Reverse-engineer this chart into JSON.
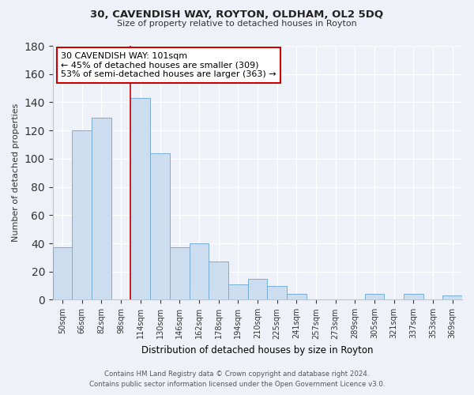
{
  "title": "30, CAVENDISH WAY, ROYTON, OLDHAM, OL2 5DQ",
  "subtitle": "Size of property relative to detached houses in Royton",
  "xlabel": "Distribution of detached houses by size in Royton",
  "ylabel": "Number of detached properties",
  "bar_color": "#ccddf0",
  "bar_edge_color": "#7aadd4",
  "categories": [
    "50sqm",
    "66sqm",
    "82sqm",
    "98sqm",
    "114sqm",
    "130sqm",
    "146sqm",
    "162sqm",
    "178sqm",
    "194sqm",
    "210sqm",
    "225sqm",
    "241sqm",
    "257sqm",
    "273sqm",
    "289sqm",
    "305sqm",
    "321sqm",
    "337sqm",
    "353sqm",
    "369sqm"
  ],
  "values": [
    37,
    120,
    129,
    0,
    143,
    104,
    37,
    40,
    27,
    11,
    15,
    10,
    4,
    0,
    0,
    0,
    4,
    0,
    4,
    0,
    3
  ],
  "property_line_color": "#cc0000",
  "annotation_line1": "30 CAVENDISH WAY: 101sqm",
  "annotation_line2": "← 45% of detached houses are smaller (309)",
  "annotation_line3": "53% of semi-detached houses are larger (363) →",
  "annotation_box_color": "#ffffff",
  "annotation_box_edge": "#cc0000",
  "ylim": [
    0,
    180
  ],
  "yticks": [
    0,
    20,
    40,
    60,
    80,
    100,
    120,
    140,
    160,
    180
  ],
  "footer_line1": "Contains HM Land Registry data © Crown copyright and database right 2024.",
  "footer_line2": "Contains public sector information licensed under the Open Government Licence v3.0.",
  "background_color": "#eef2f8",
  "grid_color": "#ffffff",
  "spine_color": "#aec8e0"
}
